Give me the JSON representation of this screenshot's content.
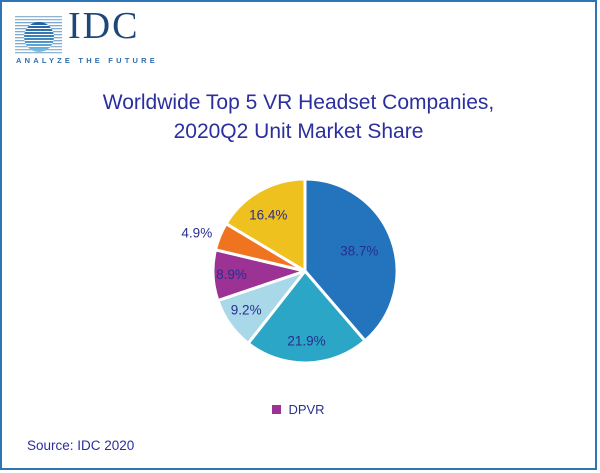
{
  "page": {
    "border_color": "#2E75B6",
    "background": "#FFFFFF"
  },
  "logo": {
    "text": "IDC",
    "tagline": "ANALYZE THE FUTURE"
  },
  "title": {
    "line1": "Worldwide Top 5 VR Headset Companies,",
    "line2": "2020Q2 Unit Market Share",
    "color": "#2B2F9E"
  },
  "chart_data": {
    "type": "pie",
    "title": "Worldwide Top 5 VR Headset Companies, 2020Q2 Unit Market Share",
    "unit": "percent market share",
    "start_angle_deg": 0,
    "direction": "clockwise",
    "slices": [
      {
        "value": 38.7,
        "label": "38.7%",
        "color": "#2374BC"
      },
      {
        "value": 21.9,
        "label": "21.9%",
        "color": "#2BA6C6"
      },
      {
        "value": 9.2,
        "label": "9.2%",
        "color": "#A9D8E8"
      },
      {
        "value": 8.9,
        "label": "8.9%",
        "color": "#9C3294",
        "legend": "DPVR"
      },
      {
        "value": 4.9,
        "label": "4.9%",
        "color": "#F07320"
      },
      {
        "value": 16.4,
        "label": "16.4%",
        "color": "#EFC11E"
      }
    ],
    "label_color": "#272E8F",
    "legend_position": "bottom",
    "legend_visible_entries": [
      {
        "label": "DPVR",
        "color": "#9C3294"
      }
    ]
  },
  "legend": {
    "items": [
      {
        "label": "DPVR",
        "color": "#9C3294"
      }
    ]
  },
  "source": {
    "text": "Source: IDC 2020"
  }
}
